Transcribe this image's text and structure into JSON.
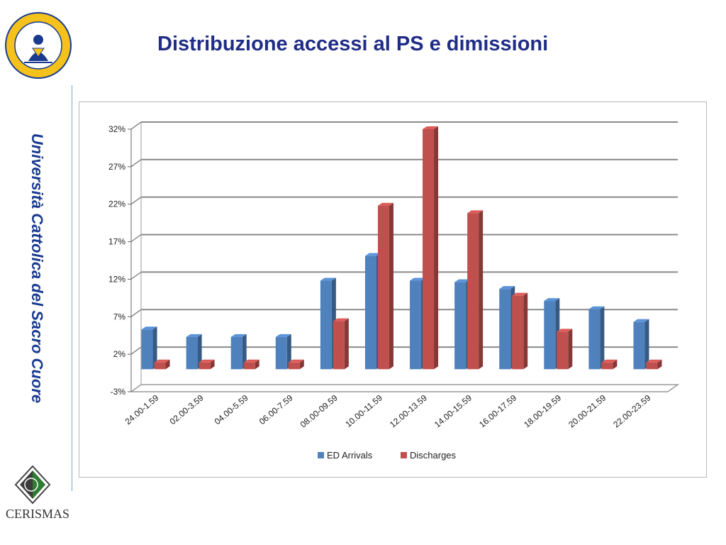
{
  "slide": {
    "title": "Distribuzione accessi al PS e dimissioni",
    "university_side_title": "Università Cattolica del Sacro Cuore",
    "seal_text": "UNIVERSITAS CATHOLICA SACRI CORDIS · MEDIOLANI ·",
    "footer_logo_text": "CERISMAS"
  },
  "chart_data": {
    "type": "bar",
    "title": "",
    "xlabel": "",
    "ylabel": "",
    "categories": [
      "24.00-1.59",
      "02.00-3.59",
      "04.00-5.59",
      "06.00-7.59",
      "08.00-09.59",
      "10.00-11.59",
      "12.00-13.59",
      "14.00-15.59",
      "16.00-17.59",
      "18.00-19.59",
      "20.00-21.59",
      "22.00-23.59"
    ],
    "series": [
      {
        "name": "ED Arrivals",
        "color": "#4f81bd",
        "values": [
          5.3,
          4.3,
          4.3,
          4.3,
          11.8,
          15.1,
          11.8,
          11.6,
          10.7,
          9.1,
          8.0,
          6.3
        ]
      },
      {
        "name": "Discharges",
        "color": "#c0504d",
        "values": [
          0.9,
          0.9,
          0.9,
          0.9,
          6.4,
          21.8,
          32.0,
          20.8,
          9.8,
          5.0,
          0.9,
          0.9
        ]
      }
    ],
    "y_ticks": [
      "32%",
      "27%",
      "22%",
      "17%",
      "12%",
      "7%",
      "2%",
      "-3%"
    ],
    "ylim": [
      -3,
      32
    ],
    "grid": true,
    "legend_position": "bottom",
    "three_d": true
  }
}
